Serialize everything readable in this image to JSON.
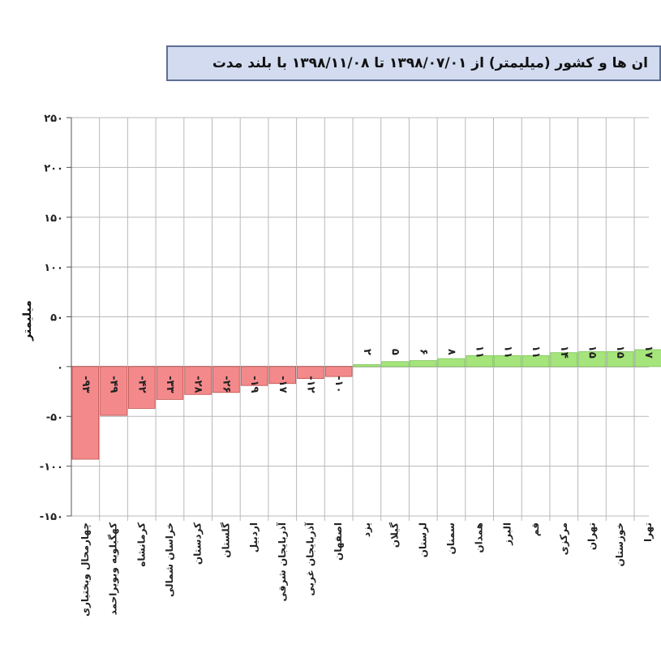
{
  "chart_data": {
    "type": "bar",
    "title": "ان ها و کشور (میلیمتر) از ۱۳۹۸/۰۷/۰۱ تا ۱۳۹۸/۱۱/۰۸ با بلند مدت",
    "ylabel": "میلیمتر",
    "ylim": [
      -150,
      250
    ],
    "yticks": [
      -150,
      -100,
      -50,
      0,
      50,
      100,
      150,
      200,
      250
    ],
    "ytick_labels": [
      "-۱۵۰",
      "-۱۰۰",
      "-۵۰",
      "۰",
      "۵۰",
      "۱۰۰",
      "۱۵۰",
      "۲۰۰",
      "۲۵۰"
    ],
    "grid": true,
    "negative_color": "#f4898b",
    "positive_color": "#a6e57c",
    "categories": [
      "چهارمحال وبختیاری",
      "کهگیلویه وبویراحمد",
      "کرمانشاه",
      "خراسان شمالی",
      "کردستان",
      "گلستان",
      "اردبیل",
      "آذربایجان شرقی",
      "آذربایجان غربی",
      "اصفهان",
      "یزد",
      "گیلان",
      "لرستان",
      "سمنان",
      "همدان",
      "البرز",
      "قم",
      "مرکزی",
      "تهران",
      "خوزستان",
      "تهرا"
    ],
    "values": [
      -93,
      -49,
      -42,
      -33,
      -28,
      -26,
      -19,
      -17,
      -12,
      -10,
      2,
      5,
      6,
      8,
      11,
      11,
      11,
      14,
      15,
      15,
      17
    ],
    "data_labels": [
      "-۹۳",
      "-۴۹",
      "-۴۲",
      "-۳۳",
      "-۲۸",
      "-۲۶",
      "-۱۹",
      "-۱۷",
      "-۱۲",
      "-۱۰",
      "۲",
      "۵",
      "۶",
      "۸",
      "۱۱",
      "۱۱",
      "۱۱",
      "۱۴",
      "۱۵",
      "۱۵",
      "۱۷"
    ]
  }
}
